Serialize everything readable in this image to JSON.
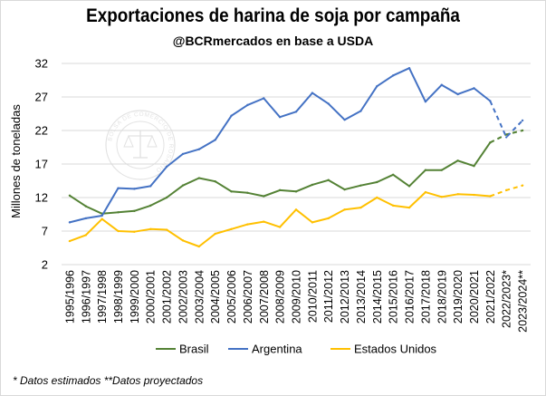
{
  "chart_data": {
    "type": "line",
    "title": "Exportaciones de harina de soja por campaña",
    "subtitle": "@BCRmercados en base a USDA",
    "ylabel": "Millones de toneladas",
    "xlabel": "",
    "ylim": [
      2,
      32
    ],
    "yticks": [
      2,
      7,
      12,
      17,
      22,
      27,
      32
    ],
    "grid": "horizontal",
    "legend_position": "bottom",
    "categories": [
      "1995/1996",
      "1996/1997",
      "1997/1998",
      "1998/1999",
      "1999/2000",
      "2000/2001",
      "2001/2002",
      "2002/2003",
      "2003/2004",
      "2004/2005",
      "2005/2006",
      "2006/2007",
      "2007/2008",
      "2008/2009",
      "2009/2010",
      "2010/2011",
      "2011/2012",
      "2012/2013",
      "2013/2014",
      "2014/2015",
      "2015/2016",
      "2016/2017",
      "2017/2018",
      "2018/2019",
      "2019/2020",
      "2020/2021",
      "2021/2022",
      "2022/2023*",
      "2023/2024**"
    ],
    "dashed_from_index": 26,
    "series": [
      {
        "name": "Brasil",
        "color": "#548235",
        "values": [
          12.3,
          10.7,
          9.6,
          9.8,
          10.0,
          10.8,
          12.0,
          13.8,
          14.9,
          14.4,
          12.9,
          12.7,
          12.2,
          13.1,
          12.9,
          13.9,
          14.6,
          13.2,
          13.8,
          14.3,
          15.4,
          13.7,
          16.1,
          16.1,
          17.5,
          16.7,
          20.2,
          21.4,
          22.0
        ]
      },
      {
        "name": "Argentina",
        "color": "#4472c4",
        "values": [
          8.3,
          8.9,
          9.3,
          13.4,
          13.3,
          13.7,
          16.6,
          18.5,
          19.2,
          20.6,
          24.2,
          25.8,
          26.8,
          24.0,
          24.8,
          27.6,
          26.0,
          23.6,
          24.9,
          28.6,
          30.2,
          31.3,
          26.3,
          28.8,
          27.4,
          28.3,
          26.4,
          21.0,
          23.5
        ]
      },
      {
        "name": "Estados Unidos",
        "color": "#ffc000",
        "values": [
          5.5,
          6.4,
          8.8,
          7.0,
          6.9,
          7.3,
          7.2,
          5.6,
          4.7,
          6.6,
          7.3,
          8.0,
          8.4,
          7.6,
          10.2,
          8.3,
          8.9,
          10.2,
          10.5,
          12.0,
          10.8,
          10.5,
          12.8,
          12.1,
          12.5,
          12.4,
          12.2,
          13.1,
          13.8
        ]
      }
    ]
  },
  "footnote": "* Datos estimados **Datos proyectados",
  "watermark": "BOLSA DE COMERCIO DE ROSARIO"
}
